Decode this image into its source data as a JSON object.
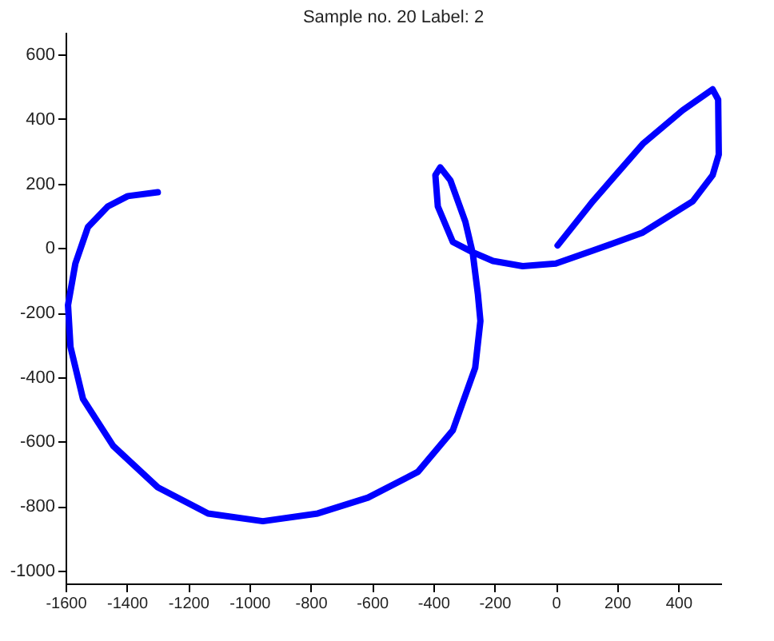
{
  "chart_data": {
    "type": "line",
    "title": "Sample no. 20 Label: 2",
    "xlim": [
      -1600,
      540
    ],
    "ylim": [
      -1040,
      670
    ],
    "xticks": [
      -1600,
      -1400,
      -1200,
      -1000,
      -800,
      -600,
      -400,
      -200,
      0,
      200,
      400
    ],
    "yticks": [
      -1000,
      -800,
      -600,
      -400,
      -200,
      0,
      200,
      400,
      600
    ],
    "grid": false,
    "marker": "none",
    "line_style": "solid",
    "series": [
      {
        "color": "#0000ff",
        "x": [
          6,
          121,
          284,
          414,
          512,
          530,
          532,
          512,
          447,
          284,
          121,
          0,
          -108,
          -205,
          -271,
          -336,
          -385,
          -393,
          -377,
          -344,
          -295,
          -271,
          -254,
          -246,
          -263,
          -336,
          -450,
          -613,
          -777,
          -956,
          -1135,
          -1299,
          -1445,
          -1543,
          -1584,
          -1592,
          -1568,
          -1527,
          -1462,
          -1397,
          -1299
        ],
        "values": [
          8,
          145,
          323,
          427,
          492,
          460,
          290,
          226,
          145,
          48,
          -8,
          -48,
          -56,
          -40,
          -13,
          19,
          129,
          226,
          250,
          210,
          81,
          -16,
          -145,
          -226,
          -371,
          -565,
          -694,
          -774,
          -823,
          -847,
          -823,
          -742,
          -613,
          -468,
          -306,
          -177,
          -48,
          65,
          129,
          161,
          173
        ]
      }
    ]
  }
}
